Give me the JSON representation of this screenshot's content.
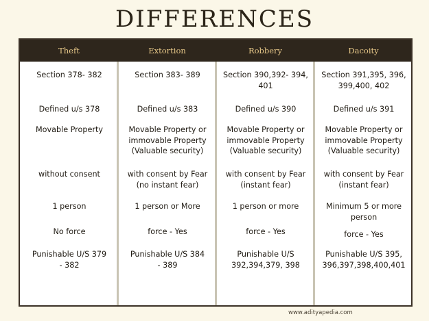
{
  "title": "DIFFERENCES",
  "headers": [
    "Theft",
    "Extortion",
    "Robbery",
    "Dacoity"
  ],
  "rows": [
    [
      "Section 378- 382",
      "Section 383- 389",
      "Section 390,392- 394, 401",
      "Section 391,395, 396, 399,400, 402"
    ],
    [
      "Defined u/s 378",
      "Defined u/s 383",
      "Defined u/s 390",
      "Defined u/s 391"
    ],
    [
      "Movable Property",
      "Movable Property or immovable Property (Valuable security)",
      "Movable Property or immovable Property (Valuable security)",
      "Movable Property or immovable Property (Valuable security)"
    ],
    [
      "without consent",
      "with consent by Fear (no instant fear)",
      "with consent by Fear (instant fear)",
      "with consent by Fear (instant fear)"
    ],
    [
      "1 person",
      "1 person or More",
      "1 person or more",
      "Minimum 5 or more person"
    ],
    [
      "No force",
      "force - Yes",
      "force - Yes",
      "force - Yes"
    ],
    [
      "Punishable U/S 379 - 382",
      "Punishable U/S 384 - 389",
      "Punishable U/S 392,394,379, 398",
      "Punishable U/S 395, 396,397,398,400,401"
    ]
  ],
  "footer": "www.adityapedia.com"
}
